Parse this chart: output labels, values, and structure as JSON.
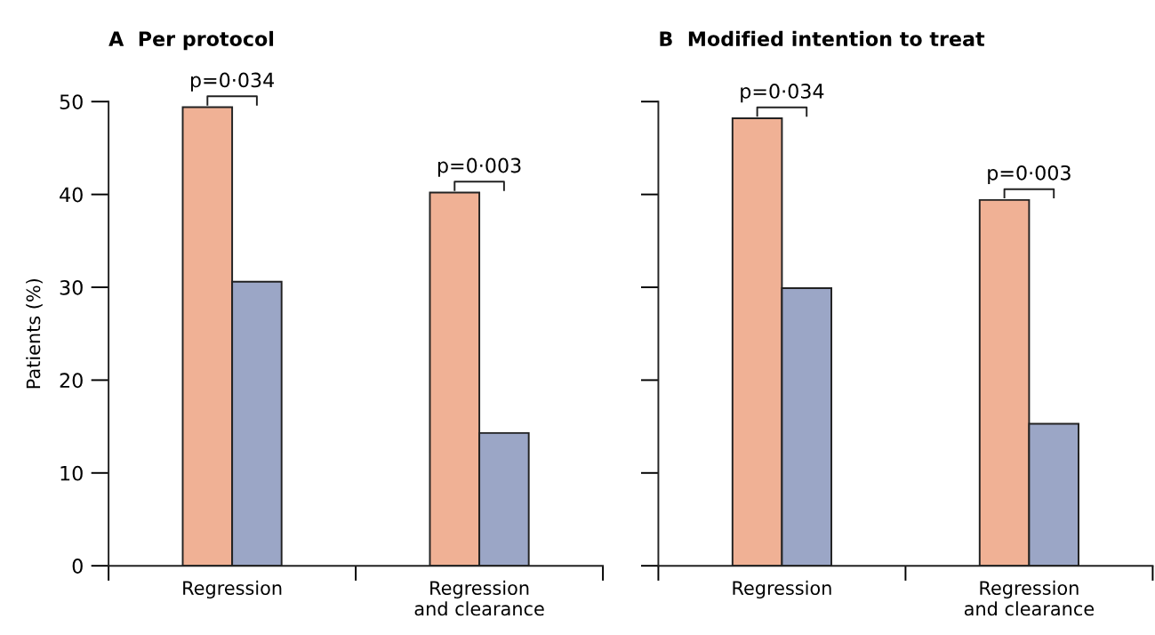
{
  "chart_data": [
    {
      "type": "bar",
      "title": "A  Per protocol",
      "ylabel": "Patients (%)",
      "categories": [
        "Regression",
        "Regression\nand clearance"
      ],
      "ylim": [
        0,
        50
      ],
      "yticks": [
        0,
        10,
        20,
        30,
        40,
        50
      ],
      "grid": false,
      "legend": false,
      "series": [
        {
          "color": "#f0b195",
          "values": [
            49.4,
            40.2
          ]
        },
        {
          "color": "#9ba6c6",
          "values": [
            30.6,
            14.3
          ]
        }
      ],
      "annotations": [
        "p=0·034",
        "p=0·003"
      ]
    },
    {
      "type": "bar",
      "title": "B  Modified intention to treat",
      "categories": [
        "Regression",
        "Regression\nand clearance"
      ],
      "ylim": [
        0,
        50
      ],
      "yticks": [
        0,
        10,
        20,
        30,
        40,
        50
      ],
      "grid": false,
      "legend": false,
      "tick_labels": "x",
      "series": [
        {
          "color": "#f0b195",
          "values": [
            48.2,
            39.4
          ]
        },
        {
          "color": "#9ba6c6",
          "values": [
            29.9,
            15.3
          ]
        }
      ],
      "annotations": [
        "p=0·034",
        "p=0·003"
      ]
    }
  ]
}
